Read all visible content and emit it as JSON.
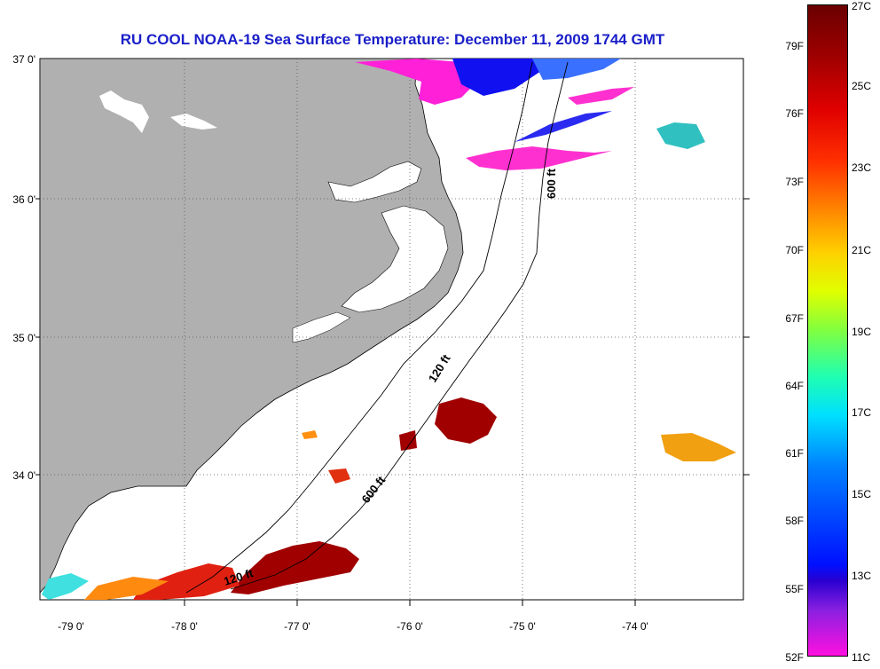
{
  "title": "RU COOL  NOAA-19  Sea Surface Temperature:  December 11, 2009 1744 GMT",
  "map": {
    "lat_labels": [
      "37 0'",
      "36 0'",
      "35 0'",
      "34 0'"
    ],
    "lon_labels": [
      "-79 0'",
      "-78 0'",
      "-77 0'",
      "-76 0'",
      "-75 0'",
      "-74 0'"
    ],
    "isobath_labels": [
      "600 ft",
      "120 ft",
      "600 ft",
      "120 ft"
    ],
    "colors": {
      "land": "#b0b0b0",
      "water": "#ffffff",
      "title": "#1a1fc8"
    }
  },
  "colorbar": {
    "fahrenheit": [
      "79F",
      "76F",
      "73F",
      "70F",
      "67F",
      "64F",
      "61F",
      "58F",
      "55F",
      "52F"
    ],
    "celsius": [
      "27C",
      "25C",
      "23C",
      "21C",
      "19C",
      "17C",
      "15C",
      "13C",
      "11C"
    ]
  }
}
